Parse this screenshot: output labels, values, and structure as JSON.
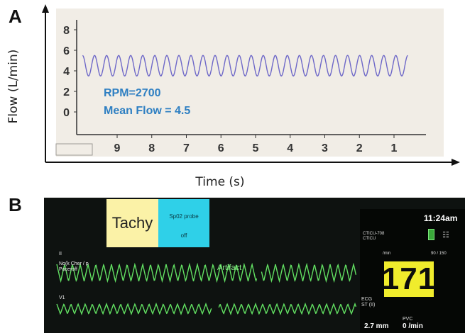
{
  "panels": {
    "a_letter": "A",
    "b_letter": "B"
  },
  "chart_data": {
    "type": "line",
    "xlabel": "Time (s)",
    "ylabel": "Flow (L/min)",
    "x_ticks": [
      9,
      8,
      7,
      6,
      5,
      4,
      3,
      2,
      1
    ],
    "y_ticks": [
      0,
      2,
      4,
      6,
      8
    ],
    "xlim": [
      10,
      0
    ],
    "ylim": [
      -1,
      9
    ],
    "annotations": [
      "RPM=2700",
      "Mean Flow = 4.5"
    ],
    "series": [
      {
        "mean": 4.5,
        "amplitude": 1.0,
        "cycles": 27,
        "x_start": 10.0,
        "x_end": 0.6,
        "color": "#6e68c8"
      }
    ],
    "grid": false,
    "paper_color": "#f1ede6"
  },
  "monitor": {
    "alarm_primary": "Tachy",
    "alarm_secondary_line1": "Sp02 probe",
    "alarm_secondary_line2": "off",
    "lead_ii_label": "II",
    "no_lead_note": "No(k Cher / p Paceroff",
    "lead_v1_label": "V1",
    "artifact_label": "Artifact",
    "time": "11:24am",
    "bed_label_line1": "CTICU-708",
    "bed_label_line2": "CTICU",
    "hr_unit": "/min",
    "hr_limits": "90 / 150",
    "heart_rate": "171",
    "ecg_label": "ECG",
    "st_label": "ST (II)",
    "pvc_label": "PVC",
    "st_value": "2.7 mm",
    "pvc_value": "0 /min",
    "trace_color": "#62e062",
    "hr_box_color": "#f0ec2c"
  }
}
